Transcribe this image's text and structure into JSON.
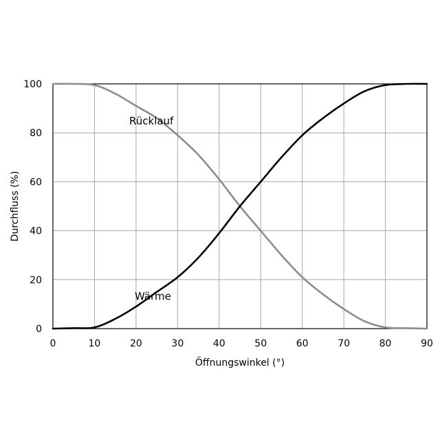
{
  "chart_data": {
    "type": "line",
    "xlabel": "Öffnungswinkel (°)",
    "ylabel": "Durchfluss (%)",
    "xlim": [
      0,
      90
    ],
    "ylim": [
      0,
      100
    ],
    "xticks": [
      "0",
      "10",
      "20",
      "30",
      "40",
      "50",
      "60",
      "70",
      "80",
      "90"
    ],
    "yticks": [
      "0",
      "20",
      "40",
      "60",
      "80",
      "100"
    ],
    "grid": true,
    "series": [
      {
        "name": "Rücklauf",
        "color": "#8c8c8c",
        "x": [
          0,
          5,
          10,
          15,
          20,
          25,
          30,
          35,
          40,
          45,
          50,
          55,
          60,
          65,
          70,
          75,
          80,
          85,
          90
        ],
        "values": [
          100,
          100,
          99.5,
          96,
          91,
          86,
          79,
          71,
          61,
          50,
          40,
          30,
          21,
          14,
          8,
          3,
          0.5,
          0.2,
          0
        ]
      },
      {
        "name": "Wärme",
        "color": "#000000",
        "x": [
          0,
          5,
          10,
          15,
          20,
          25,
          30,
          35,
          40,
          45,
          50,
          55,
          60,
          65,
          70,
          75,
          80,
          85,
          90
        ],
        "values": [
          0,
          0.2,
          0.5,
          4,
          9,
          15,
          21,
          29,
          39,
          50,
          60,
          70,
          79,
          86,
          92,
          97,
          99.5,
          100,
          100
        ]
      }
    ]
  }
}
